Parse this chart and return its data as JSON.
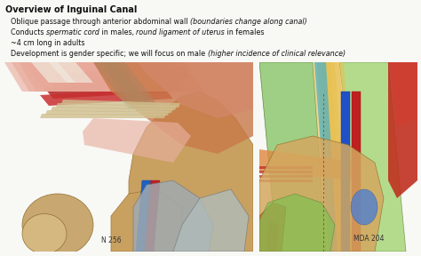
{
  "title": "Overview of Inguinal Canal",
  "line1_normal": "Oblique passage through anterior abdominal wall ",
  "line1_italic": "(boundaries change along canal)",
  "line2_parts": [
    [
      "Conducts ",
      false
    ],
    [
      "spermatic cord",
      true
    ],
    [
      " in males, ",
      false
    ],
    [
      "round ligament of uterus",
      true
    ],
    [
      " in females",
      false
    ]
  ],
  "line3": "~4 cm long in adults",
  "line4_normal": "Development is gender specific; we will focus on male ",
  "line4_italic": "(higher incidence of clinical relevance)",
  "label_left": "N 256",
  "label_right": "MDA 204",
  "bg_color": "#f8f8f5",
  "text_color": "#111111",
  "title_fontsize": 7.0,
  "body_fontsize": 5.8
}
